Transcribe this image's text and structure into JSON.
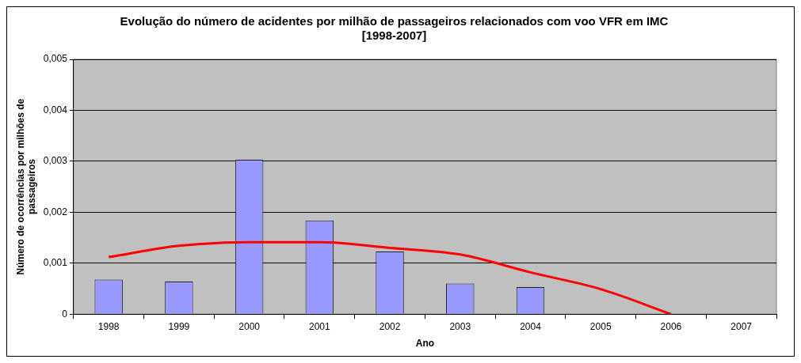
{
  "chart_data": {
    "type": "bar",
    "title": "Evolução do número de acidentes por milhão de passageiros relacionados com voo VFR em IMC\n[1998-2007]",
    "xlabel": "Ano",
    "ylabel": "Número de ocorrências por milhões de passageiros",
    "categories": [
      "1998",
      "1999",
      "2000",
      "2001",
      "2002",
      "2003",
      "2004",
      "2005",
      "2006",
      "2007"
    ],
    "series": [
      {
        "color": "#9999ff",
        "values": [
          0.00068,
          0.00064,
          0.00303,
          0.00184,
          0.00123,
          0.0006,
          0.00053,
          null,
          null,
          null
        ]
      },
      {
        "type": "line",
        "color": "#ff0000",
        "values": [
          0.00112,
          0.00134,
          0.00141,
          0.00141,
          0.0013,
          0.00117,
          0.00082,
          0.00049,
          0,
          null
        ]
      }
    ],
    "ylim": [
      0,
      0.005
    ],
    "yticks": [
      {
        "value": 0,
        "label": "0"
      },
      {
        "value": 0.001,
        "label": "0,001"
      },
      {
        "value": 0.002,
        "label": "0,002"
      },
      {
        "value": 0.003,
        "label": "0,003"
      },
      {
        "value": 0.004,
        "label": "0,004"
      },
      {
        "value": 0.005,
        "label": "0,005"
      }
    ],
    "grid": "y",
    "legend": false,
    "marker": "none",
    "line_style": "solid"
  }
}
